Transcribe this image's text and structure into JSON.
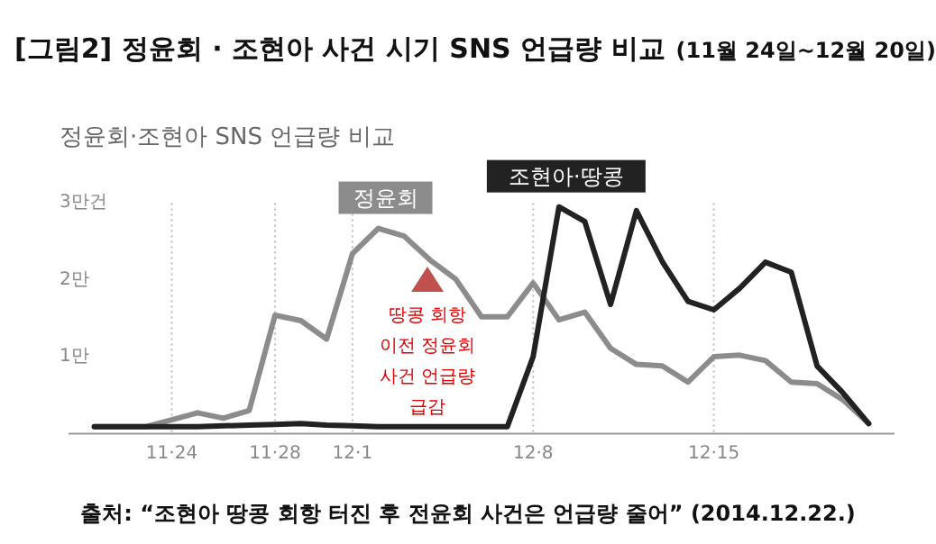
{
  "chart_data": {
    "type": "line",
    "title": "[그림2] 정윤회 · 조현아 사건 시기 SNS 언급량 비교",
    "subtitle": "(11월 24일~12월 20일)",
    "annotations": [
      "정윤회·조현아 SNS 언급량 비교",
      "땅콩 회항\n이전 정윤회\n사건 언급량\n급감",
      "출처: “조현아 땅콩 회항 터진 후 전윤회 사건은 언급량 줄어” (2014.12.22.)"
    ],
    "x": [
      "--11-21",
      "--11-22",
      "--11-23",
      "--11-24",
      "--11-25",
      "--11-26",
      "--11-27",
      "--11-28",
      "--11-29",
      "--11-30",
      "--12-01",
      "--12-02",
      "--12-03",
      "--12-04",
      "--12-05",
      "--12-06",
      "--12-07",
      "--12-08",
      "--12-09",
      "--12-10",
      "--12-11",
      "--12-12",
      "--12-13",
      "--12-14",
      "--12-15",
      "--12-16",
      "--12-17",
      "--12-18",
      "--12-19",
      "--12-20",
      "--12-21"
    ],
    "series": [
      {
        "name": "정윤회",
        "color": "#8c8c8c",
        "values": [
          0.09,
          0.09,
          0.09,
          0.18,
          0.27,
          0.2,
          0.3,
          1.54,
          1.47,
          1.23,
          2.34,
          2.67,
          2.57,
          2.26,
          2.01,
          1.52,
          1.52,
          1.96,
          1.48,
          1.58,
          1.11,
          0.9,
          0.88,
          0.67,
          1.0,
          1.02,
          0.95,
          0.67,
          0.65,
          0.44,
          0.13
        ]
      },
      {
        "name": "조현아·땅콩",
        "color": "#222222",
        "values": [
          0.09,
          0.09,
          0.09,
          0.09,
          0.09,
          0.1,
          0.11,
          0.12,
          0.13,
          0.11,
          0.1,
          0.09,
          0.09,
          0.09,
          0.09,
          0.09,
          0.09,
          1.0,
          2.95,
          2.76,
          1.68,
          2.9,
          2.24,
          1.72,
          1.61,
          1.89,
          2.23,
          2.1,
          0.88,
          0.53,
          0.13
        ]
      }
    ],
    "xlim": [
      "--11-20",
      "--12-22"
    ],
    "xticks": [
      {
        "value": "--11-24",
        "label": "11·24"
      },
      {
        "value": "--11-28",
        "label": "11·28"
      },
      {
        "value": "--12-01",
        "label": "12·1"
      },
      {
        "value": "--12-08",
        "label": "12·8"
      },
      {
        "value": "--12-15",
        "label": "12·15"
      }
    ],
    "ylim": [
      0,
      3
    ],
    "yticks": [
      {
        "value": 1,
        "label": "1만"
      },
      {
        "value": 2,
        "label": "2만"
      },
      {
        "value": 3,
        "label": "3만건"
      }
    ],
    "grid": "x",
    "marker": "none",
    "line_style": "solid"
  }
}
